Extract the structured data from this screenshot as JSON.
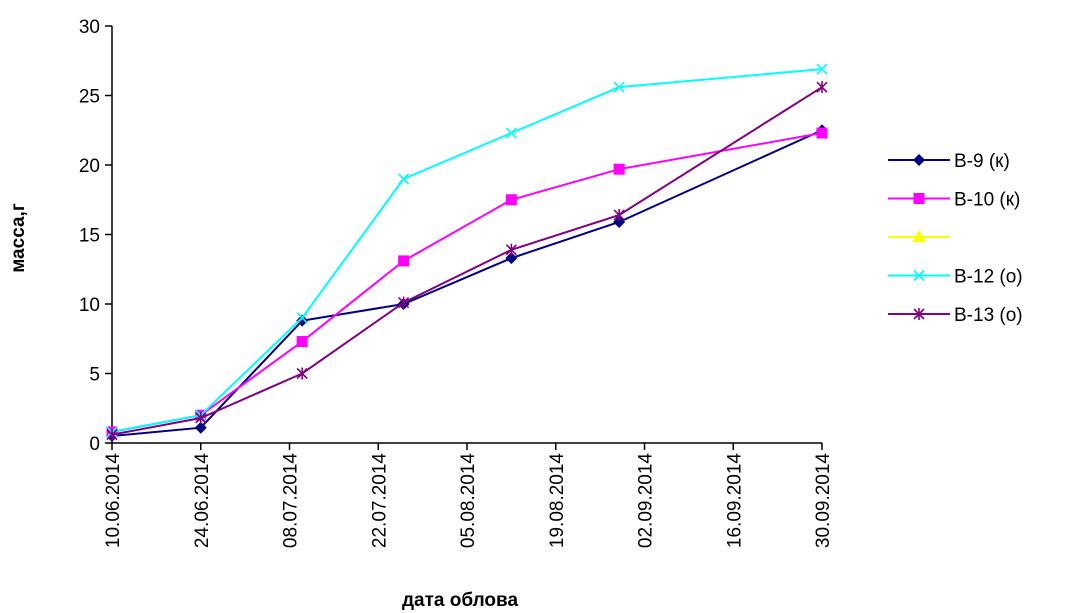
{
  "chart_data": {
    "type": "line",
    "title": "",
    "xlabel": "дата облова",
    "ylabel": "масса,г",
    "x_axis": "date",
    "xlim": [
      "10.06.2014",
      "30.09.2014"
    ],
    "ylim": [
      0,
      30
    ],
    "y_ticks": [
      0,
      5,
      10,
      15,
      20,
      25,
      30
    ],
    "x_tick_labels": [
      "10.06.2014",
      "24.06.2014",
      "08.07.2014",
      "22.07.2014",
      "05.08.2014",
      "19.08.2014",
      "02.09.2014",
      "16.09.2014",
      "30.09.2014"
    ],
    "grid": false,
    "legend_position": "right",
    "series": [
      {
        "name": "В-9 (к)",
        "color": "#000080",
        "marker": "diamond",
        "x": [
          "10.06.2014",
          "24.06.2014",
          "10.07.2014",
          "26.07.2014",
          "12.08.2014",
          "29.08.2014",
          "30.09.2014"
        ],
        "y": [
          0.5,
          1.1,
          8.8,
          10.0,
          13.3,
          15.9,
          22.5
        ]
      },
      {
        "name": "В-10 (к)",
        "color": "#ff00ff",
        "marker": "square",
        "x": [
          "10.06.2014",
          "24.06.2014",
          "10.07.2014",
          "26.07.2014",
          "12.08.2014",
          "29.08.2014",
          "30.09.2014"
        ],
        "y": [
          0.8,
          2.0,
          7.3,
          13.1,
          17.5,
          19.7,
          22.3
        ]
      },
      {
        "name": "",
        "color": "#ffff00",
        "marker": "triangle",
        "x": [],
        "y": []
      },
      {
        "name": "В-12 (о)",
        "color": "#00ffff",
        "marker": "x",
        "x": [
          "10.06.2014",
          "24.06.2014",
          "10.07.2014",
          "26.07.2014",
          "12.08.2014",
          "29.08.2014",
          "30.09.2014"
        ],
        "y": [
          0.8,
          2.0,
          9.0,
          19.0,
          22.3,
          25.6,
          26.9
        ]
      },
      {
        "name": "В-13 (о)",
        "color": "#800080",
        "marker": "star",
        "x": [
          "10.06.2014",
          "24.06.2014",
          "10.07.2014",
          "26.07.2014",
          "12.08.2014",
          "29.08.2014",
          "30.09.2014"
        ],
        "y": [
          0.6,
          1.8,
          5.0,
          10.1,
          13.9,
          16.4,
          25.6
        ]
      }
    ]
  }
}
